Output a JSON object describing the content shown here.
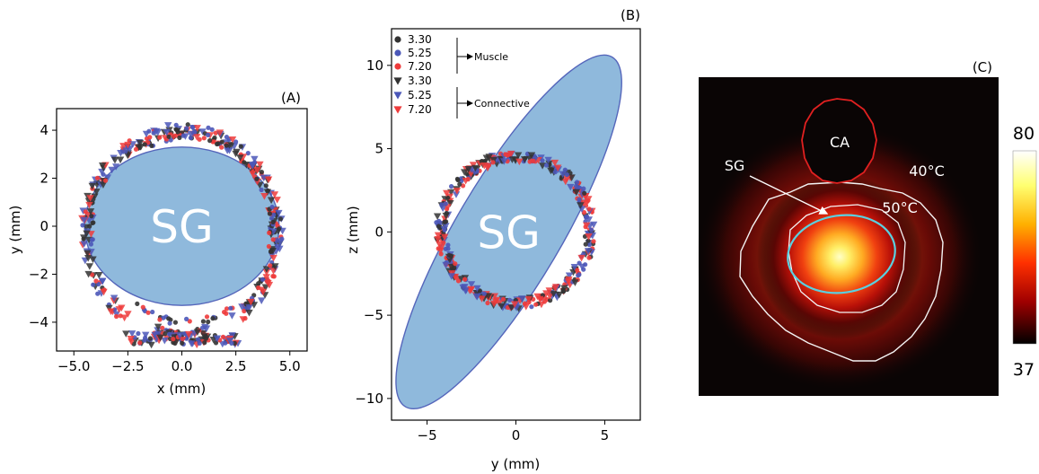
{
  "chart_data": [
    {
      "panel_label": "(A)",
      "type": "scatter",
      "xlabel": "x (mm)",
      "ylabel": "y (mm)",
      "xlim": [
        -5.8,
        5.8
      ],
      "ylim": [
        -5.2,
        4.9
      ],
      "xticks": [
        "−5.0",
        "−2.5",
        "0.0",
        "2.5",
        "5.0"
      ],
      "xtick_values": [
        -5,
        -2.5,
        0,
        2.5,
        5
      ],
      "yticks": [
        "4",
        "2",
        "0",
        "−2",
        "−4"
      ],
      "ytick_values": [
        4,
        2,
        0,
        -2,
        -4
      ],
      "region": {
        "label": "SG",
        "shape": "ellipse",
        "center": [
          0,
          0
        ],
        "semi_axes": [
          4.5,
          3.3
        ],
        "rotation_deg": 0,
        "color": "#8fb9dc"
      },
      "points": {
        "shape": "ring",
        "center": [
          0,
          -0.3
        ],
        "radius": [
          4.4,
          4.3
        ],
        "gaps_deg": [
          [
            235,
            252
          ],
          [
            288,
            302
          ]
        ]
      },
      "extra_band": {
        "x_range": [
          -2.6,
          2.6
        ],
        "y": -4.7
      }
    },
    {
      "panel_label": "(B)",
      "type": "scatter",
      "xlabel": "y (mm)",
      "ylabel": "z (mm)",
      "xlim": [
        -7.0,
        7.0
      ],
      "ylim": [
        -11.3,
        12.2
      ],
      "xticks": [
        "−5",
        "0",
        "5"
      ],
      "xtick_values": [
        -5,
        0,
        5
      ],
      "yticks": [
        "10",
        "5",
        "0",
        "−5",
        "−10"
      ],
      "ytick_values": [
        10,
        5,
        0,
        -5,
        -10
      ],
      "region": {
        "label": "SG",
        "shape": "ellipse",
        "center": [
          -0.4,
          0
        ],
        "semi_axes": [
          12.0,
          3.0
        ],
        "rotation_deg": 61,
        "color": "#8fb9dc"
      },
      "points": {
        "shape": "ring",
        "center": [
          0,
          0.1
        ],
        "radius": [
          4.2,
          4.4
        ]
      },
      "legend": {
        "placement": "top-left",
        "entries": [
          {
            "label": "3.30",
            "marker": "circle",
            "color": "#333333"
          },
          {
            "label": "5.25",
            "marker": "circle",
            "color": "#4b57b8"
          },
          {
            "label": "7.20",
            "marker": "circle",
            "color": "#ee3b3b"
          },
          {
            "label": "3.30",
            "marker": "triangle",
            "color": "#333333"
          },
          {
            "label": "5.25",
            "marker": "triangle",
            "color": "#4b57b8"
          },
          {
            "label": "7.20",
            "marker": "triangle",
            "color": "#ee3b3b"
          }
        ],
        "groups": [
          "Muscle",
          "Connective"
        ]
      }
    },
    {
      "panel_label": "(C)",
      "type": "heatmap",
      "labels": {
        "ca": "CA",
        "sg": "SG",
        "contour_40": "40°C",
        "contour_50": "50°C"
      },
      "colorbar": {
        "max_label": "80",
        "min_label": "37",
        "min": 37,
        "max": 80,
        "colormap": "hot"
      }
    }
  ],
  "colors": {
    "region_fill": "#8fb9dc",
    "region_edge": "#5566bb",
    "series_black": "#333333",
    "series_blue": "#4b57b8",
    "series_red": "#ee3b3b",
    "ca_outline": "#e02020",
    "sg_outline": "#5ad0e0",
    "contour": "#f4f4f4",
    "heat_background": "#0a0505"
  }
}
